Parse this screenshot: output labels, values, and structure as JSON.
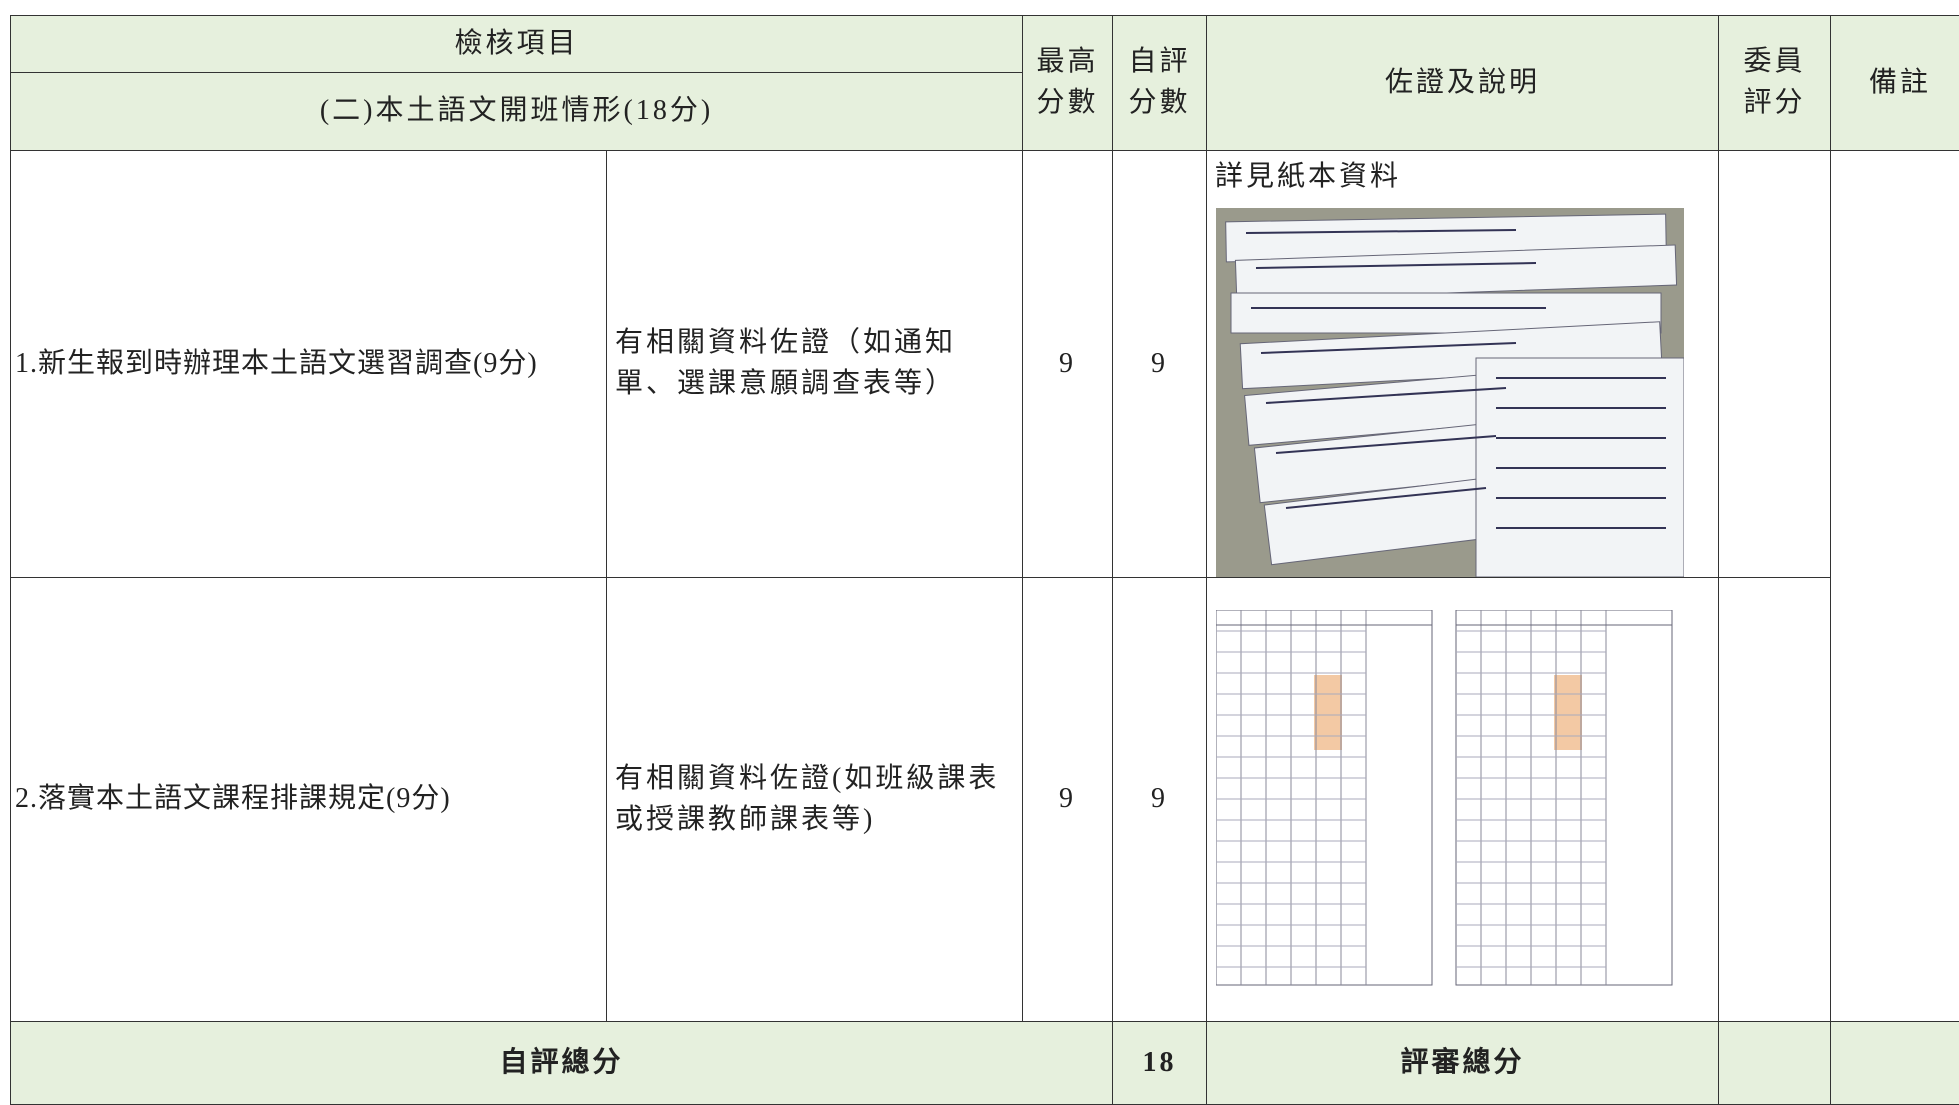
{
  "table": {
    "header": {
      "item": "檢核項目",
      "section": "(二)本土語文開班情形(18分)",
      "max_score": [
        "最高",
        "分數"
      ],
      "self_score": [
        "自評",
        "分數"
      ],
      "evidence": "佐證及說明",
      "committee_score": [
        "委員",
        "評分"
      ],
      "remarks": "備註"
    },
    "rows": [
      {
        "item": "1.新生報到時辦理本土語文選習調查(9分)",
        "criteria": "有相關資料佐證（如通知單、選課意願調查表等）",
        "max_score": 9,
        "self_score": 9,
        "evidence_note": "詳見紙本資料"
      },
      {
        "item": "2.落實本土語文課程排課規定(9分)",
        "criteria": "有相關資料佐證(如班級課表或授課教師課表等)",
        "max_score": 9,
        "self_score": 9
      }
    ],
    "footer": {
      "self_total_label": "自評總分",
      "self_total": 18,
      "review_total_label": "評審總分"
    }
  }
}
